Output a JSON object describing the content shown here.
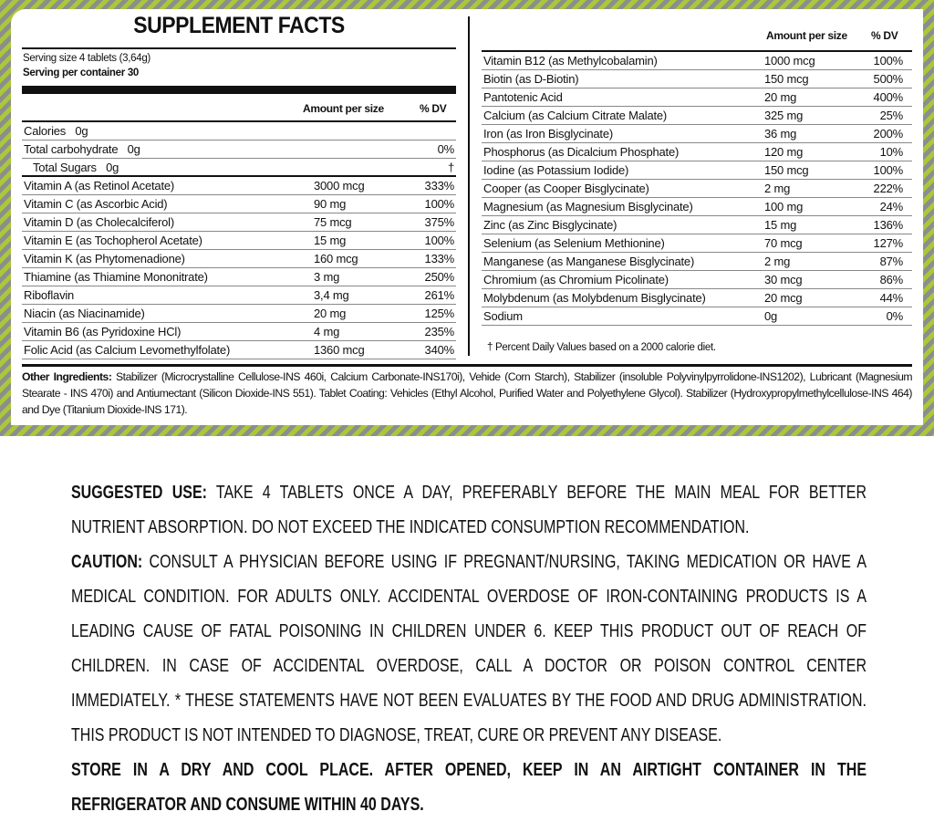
{
  "title": "SUPPLEMENT FACTS",
  "serving_size": "Serving size 4 tablets (3,64g)",
  "servings_per_container": "Serving per container 30",
  "col_amount": "Amount per size",
  "col_dv": "% DV",
  "left_rows": [
    {
      "name": "Calories   0g",
      "amount": "",
      "dv": ""
    },
    {
      "name": "Total carbohydrate   0g",
      "amount": "",
      "dv": "0%"
    },
    {
      "name": "   Total Sugars   0g",
      "amount": "",
      "dv": "†"
    },
    {
      "name": "Vitamin A (as Retinol Acetate)",
      "amount": "3000 mcg",
      "dv": "333%"
    },
    {
      "name": "Vitamin C (as Ascorbic Acid)",
      "amount": "90 mg",
      "dv": "100%"
    },
    {
      "name": "Vitamin D (as Cholecalciferol)",
      "amount": "75 mcg",
      "dv": "375%"
    },
    {
      "name": "Vitamin E (as Tochopherol Acetate)",
      "amount": "15 mg",
      "dv": "100%"
    },
    {
      "name": "Vitamin K (as Phytomenadione)",
      "amount": "160 mcg",
      "dv": "133%"
    },
    {
      "name": "Thiamine (as Thiamine Mononitrate)",
      "amount": "3 mg",
      "dv": "250%"
    },
    {
      "name": "Riboflavin",
      "amount": "3,4 mg",
      "dv": "261%"
    },
    {
      "name": "Niacin (as Niacinamide)",
      "amount": "20 mg",
      "dv": "125%"
    },
    {
      "name": "Vitamin B6 (as Pyridoxine HCl)",
      "amount": "4 mg",
      "dv": "235%"
    },
    {
      "name": "Folic Acid (as Calcium Levomethylfolate)",
      "amount": "1360 mcg",
      "dv": "340%"
    }
  ],
  "right_rows": [
    {
      "name": "Vitamin B12 (as Methylcobalamin)",
      "amount": "1000 mcg",
      "dv": "100%"
    },
    {
      "name": "Biotin (as D-Biotin)",
      "amount": "150 mcg",
      "dv": "500%"
    },
    {
      "name": "Pantotenic Acid",
      "amount": "20 mg",
      "dv": "400%"
    },
    {
      "name": "Calcium (as Calcium Citrate Malate)",
      "amount": "325 mg",
      "dv": "25%"
    },
    {
      "name": "Iron (as Iron Bisglycinate)",
      "amount": "36 mg",
      "dv": "200%"
    },
    {
      "name": "Phosphorus (as Dicalcium Phosphate)",
      "amount": "120 mg",
      "dv": "10%"
    },
    {
      "name": "Iodine (as Potassium Iodide)",
      "amount": "150 mcg",
      "dv": "100%"
    },
    {
      "name": "Cooper (as Cooper Bisglycinate)",
      "amount": "2 mg",
      "dv": "222%"
    },
    {
      "name": "Magnesium (as Magnesium Bisglycinate)",
      "amount": "100 mg",
      "dv": "24%"
    },
    {
      "name": "Zinc (as Zinc Bisglycinate)",
      "amount": "15 mg",
      "dv": "136%"
    },
    {
      "name": "Selenium (as Selenium Methionine)",
      "amount": "70 mcg",
      "dv": "127%"
    },
    {
      "name": "Manganese (as Manganese Bisglycinate)",
      "amount": "2 mg",
      "dv": "87%"
    },
    {
      "name": "Chromium (as Chromium Picolinate)",
      "amount": "30 mcg",
      "dv": "86%"
    },
    {
      "name": "Molybdenum (as Molybdenum Bisglycinate)",
      "amount": "20 mcg",
      "dv": "44%"
    },
    {
      "name": "Sodium",
      "amount": "0g",
      "dv": "0%"
    }
  ],
  "footnote": "†  Percent Daily Values based on a 2000 calorie diet.",
  "other_ingredients_label": "Other Ingredients:",
  "other_ingredients": " Stabilizer (Microcrystalline Cellulose-INS 460i, Calcium Carbonate-INS170i), Vehide (Corn Starch), Stabilizer (insoluble Polyvinylpyrrolidone-INS1202), Lubricant (Magnesium Stearate - INS 470i) and Antiumectant (Silicon Dioxide-INS 551). Tablet Coating: Vehicles (Ethyl Alcohol, Purified Water and Polyethylene Glycol). Stabilizer (Hydroxypropylmethylcellulose-INS 464) and Dye (Titanium Dioxide-INS 171).",
  "suggested_use_label": "SUGGESTED USE:",
  "suggested_use": " TAKE 4 TABLETS ONCE A DAY, PREFERABLY BEFORE THE MAIN MEAL FOR BETTER NUTRIENT ABSORPTION. DO NOT EXCEED THE INDICATED CONSUMPTION RECOMMENDATION.",
  "caution_label": "CAUTION:",
  "caution": " CONSULT A PHYSICIAN BEFORE USING IF PREGNANT/NURSING, TAKING MEDICATION OR HAVE A MEDICAL CONDITION. FOR ADULTS ONLY. ACCIDENTAL OVERDOSE OF IRON-CONTAINING PRODUCTS IS A LEADING CAUSE OF FATAL POISONING IN CHILDREN UNDER 6. KEEP THIS PRODUCT OUT OF REACH OF CHILDREN. IN CASE OF ACCIDENTAL OVERDOSE, CALL A DOCTOR OR POISON CONTROL CENTER IMMEDIATELY. * THESE STATEMENTS HAVE NOT BEEN EVALUATES BY THE FOOD AND DRUG ADMINISTRATION. THIS PRODUCT IS NOT INTENDED TO DIAGNOSE, TREAT, CURE OR PREVENT ANY DISEASE.",
  "storage": "STORE IN A DRY AND COOL PLACE. AFTER OPENED, KEEP IN AN AIRTIGHT CONTAINER IN THE REFRIGERATOR AND CONSUME WITHIN 40 DAYS.",
  "colors": {
    "stripe_green": "#a9c83a",
    "stripe_gray": "#8d8d8d"
  }
}
